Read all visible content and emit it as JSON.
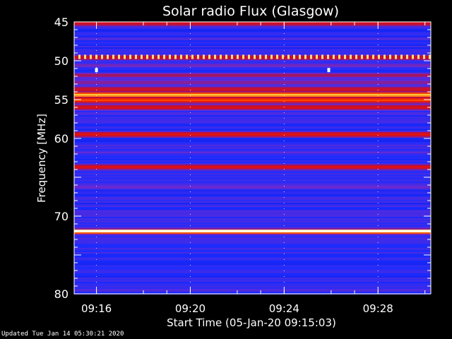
{
  "chart_data": {
    "type": "heatmap",
    "title": "Solar radio Flux (Glasgow)",
    "xlabel": "Start Time (05-Jan-20 09:15:03)",
    "ylabel": "Frequency [MHz]",
    "y_ticks": [
      45,
      50,
      55,
      60,
      65,
      70,
      75,
      80
    ],
    "y_tick_labels": [
      "45",
      "50",
      "55",
      "60",
      "",
      "70",
      "",
      "80"
    ],
    "ylim": [
      80,
      45
    ],
    "x_ticks": [
      "09:16",
      "09:20",
      "09:24",
      "09:28"
    ],
    "x_tick_minutes": [
      0.95,
      4.95,
      8.95,
      12.95
    ],
    "xlim_minutes": [
      0,
      15.2
    ],
    "intensity_scale": [
      "#0000b0",
      "#1a2cff",
      "#6a2ad0",
      "#b0104a",
      "#e01010",
      "#ff4a00",
      "#ffd040",
      "#ffffe0"
    ],
    "frequency_bands": [
      {
        "mhz": 45.1,
        "level": 0.55
      },
      {
        "mhz": 47.5,
        "level": 0.15
      },
      {
        "mhz": 49.5,
        "level": 0.5
      },
      {
        "mhz": 50.5,
        "level": 0.3
      },
      {
        "mhz": 51.8,
        "level": 0.42
      },
      {
        "mhz": 52.7,
        "level": 0.38
      },
      {
        "mhz": 53.6,
        "level": 0.55
      },
      {
        "mhz": 54.3,
        "level": 0.85
      },
      {
        "mhz": 55.0,
        "level": 0.72
      },
      {
        "mhz": 55.9,
        "level": 0.55
      },
      {
        "mhz": 57.5,
        "level": 0.2
      },
      {
        "mhz": 59.4,
        "level": 0.58
      },
      {
        "mhz": 61.7,
        "level": 0.25
      },
      {
        "mhz": 63.6,
        "level": 0.58
      },
      {
        "mhz": 65.0,
        "level": 0.12
      },
      {
        "mhz": 66.2,
        "level": 0.3
      },
      {
        "mhz": 67.6,
        "level": 0.1
      },
      {
        "mhz": 69.5,
        "level": 0.22
      },
      {
        "mhz": 71.9,
        "level": 0.98
      },
      {
        "mhz": 73.4,
        "level": 0.2
      },
      {
        "mhz": 75.5,
        "level": 0.15
      },
      {
        "mhz": 77.5,
        "level": 0.12
      }
    ],
    "dotted_line_mhz": 49.5,
    "spikes": [
      {
        "minute": 0.95,
        "mhz": 51.2
      },
      {
        "minute": 10.85,
        "mhz": 51.2
      }
    ]
  },
  "footer": "Updated Tue Jan 14 05:30:21 2020"
}
